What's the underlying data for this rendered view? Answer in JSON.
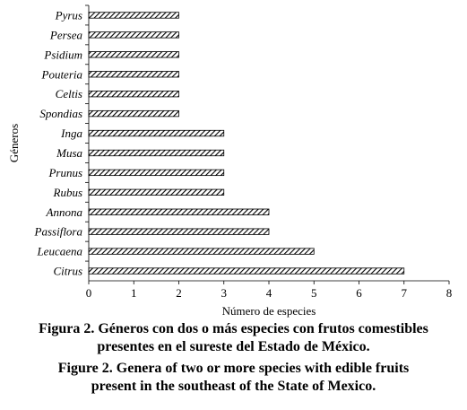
{
  "chart_data": {
    "type": "bar",
    "orientation": "horizontal",
    "categories": [
      "Pyrus",
      "Persea",
      "Psidium",
      "Pouteria",
      "Celtis",
      "Spondias",
      "Inga",
      "Musa",
      "Prunus",
      "Rubus",
      "Annona",
      "Passiflora",
      "Leucaena",
      "Citrus"
    ],
    "values": [
      2,
      2,
      2,
      2,
      2,
      2,
      3,
      3,
      3,
      3,
      4,
      4,
      5,
      7
    ],
    "xlabel": "Número de especies",
    "ylabel": "Géneros",
    "xlim": [
      0,
      8
    ],
    "xticks": [
      0,
      1,
      2,
      3,
      4,
      5,
      6,
      7,
      8
    ],
    "grid": false,
    "bar_fill": "hatched",
    "bar_color": "#000000"
  },
  "caption": {
    "es_line1": "Figura 2. Géneros con dos o más especies con frutos comestibles",
    "es_line2": "presentes en el sureste del Estado de México.",
    "en_line1": "Figure 2. Genera of two or more species with edible fruits",
    "en_line2": "present in the southeast of the State of Mexico."
  }
}
